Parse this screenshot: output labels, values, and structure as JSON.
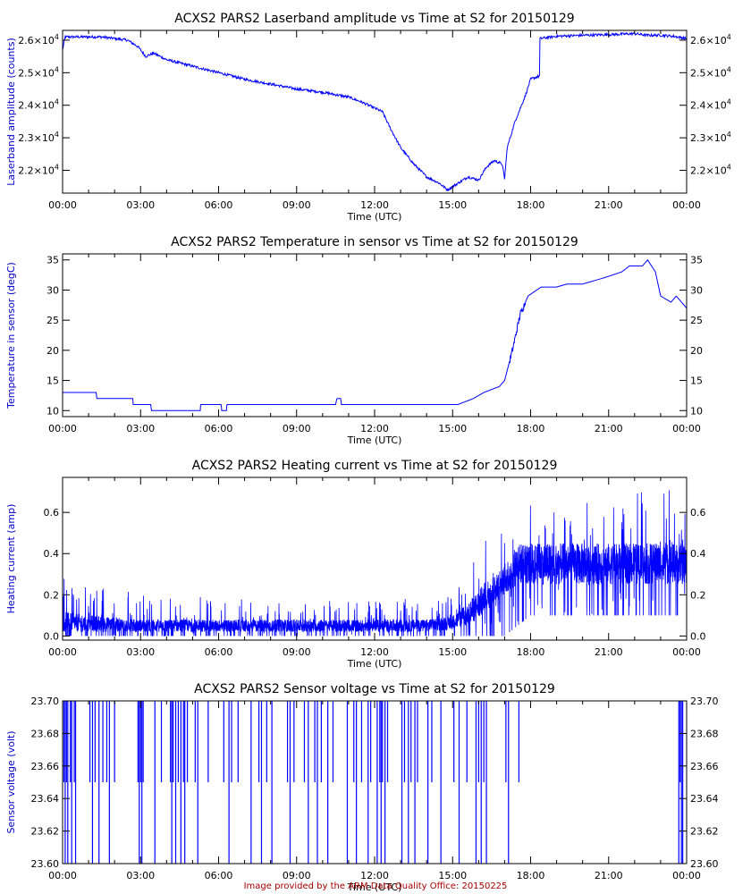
{
  "footer": "Image provided by the ARM Data Quality Office: 20150225",
  "colors": {
    "series": "#0000ff",
    "ylabel": "#0000cc",
    "axis": "#000000",
    "footer": "#aa0000"
  },
  "chart_data": [
    {
      "type": "line",
      "id": "laserband",
      "title": "ACXS2 PARS2 Laserband amplitude vs Time at S2 for 20150129",
      "xlabel": "Time (UTC)",
      "ylabel": "Laserband amplitude (counts)",
      "xlim": [
        0,
        24
      ],
      "ylim": [
        21300,
        26300
      ],
      "x_ticks": [
        0,
        3,
        6,
        9,
        12,
        15,
        18,
        21,
        24
      ],
      "x_tick_labels": [
        "00:00",
        "03:00",
        "06:00",
        "09:00",
        "12:00",
        "15:00",
        "18:00",
        "21:00",
        "00:00"
      ],
      "y_ticks": [
        22000,
        23000,
        24000,
        25000,
        26000
      ],
      "y_tick_labels": [
        {
          "base": "2.2×10",
          "exp": "4"
        },
        {
          "base": "2.3×10",
          "exp": "4"
        },
        {
          "base": "2.4×10",
          "exp": "4"
        },
        {
          "base": "2.5×10",
          "exp": "4"
        },
        {
          "base": "2.6×10",
          "exp": "4"
        }
      ],
      "noise": 40,
      "series": [
        {
          "name": "Laserband amplitude",
          "x": [
            0,
            0.1,
            0.5,
            1.5,
            2.5,
            2.9,
            3.2,
            3.5,
            4,
            5,
            6,
            7,
            8,
            9,
            10,
            11,
            11.5,
            12.3,
            12.6,
            13,
            13.5,
            14,
            14.5,
            14.8,
            15.2,
            15.6,
            16,
            16.3,
            16.6,
            16.9,
            17,
            17.1,
            17.4,
            17.8,
            18,
            18.35,
            18.36,
            19,
            20,
            21,
            22,
            22.5,
            23,
            23.5,
            24
          ],
          "y": [
            25700,
            26100,
            26100,
            26100,
            26000,
            25800,
            25500,
            25600,
            25400,
            25200,
            25000,
            24800,
            24650,
            24500,
            24400,
            24250,
            24100,
            23800,
            23300,
            22700,
            22200,
            21800,
            21600,
            21400,
            21600,
            21800,
            21700,
            22100,
            22300,
            22200,
            21750,
            22700,
            23500,
            24300,
            24800,
            24900,
            26050,
            26120,
            26150,
            26170,
            26200,
            26150,
            26150,
            26120,
            26050
          ]
        }
      ]
    },
    {
      "type": "line",
      "id": "temperature",
      "title": "ACXS2 PARS2 Temperature in sensor vs Time at S2 for 20150129",
      "xlabel": "Time (UTC)",
      "ylabel": "Temperature in sensor (degC)",
      "xlim": [
        0,
        24
      ],
      "ylim": [
        9,
        36
      ],
      "x_ticks": [
        0,
        3,
        6,
        9,
        12,
        15,
        18,
        21,
        24
      ],
      "x_tick_labels": [
        "00:00",
        "03:00",
        "06:00",
        "09:00",
        "12:00",
        "15:00",
        "18:00",
        "21:00",
        "00:00"
      ],
      "y_ticks": [
        10,
        15,
        20,
        25,
        30,
        35
      ],
      "y_tick_labels": [
        "10",
        "15",
        "20",
        "25",
        "30",
        "35"
      ],
      "noise": 0,
      "series": [
        {
          "name": "Temperature",
          "x": [
            0,
            1.3,
            1.31,
            2.7,
            2.71,
            3.4,
            3.41,
            5.3,
            5.31,
            6.1,
            6.12,
            6.3,
            6.32,
            8.5,
            8.52,
            10.5,
            10.55,
            10.7,
            10.72,
            15.1,
            15.2,
            15.5,
            15.8,
            16.2,
            16.5,
            16.8,
            17.0,
            17.3,
            17.6,
            17.9,
            18.4,
            19.0,
            19.4,
            20.0,
            20.8,
            21.5,
            21.8,
            22.3,
            22.5,
            22.8,
            23.0,
            23.4,
            23.6,
            23.8,
            24.0
          ],
          "y": [
            13,
            13,
            12,
            12,
            11,
            11,
            10,
            10,
            11,
            11,
            10,
            10,
            11,
            11,
            11,
            11,
            12,
            12,
            11,
            11,
            11,
            11.5,
            12,
            13,
            13.5,
            14,
            15,
            20,
            26,
            29,
            30.5,
            30.5,
            31,
            31,
            32,
            33,
            34,
            34,
            35,
            33,
            29,
            28,
            29,
            28,
            27
          ]
        }
      ]
    },
    {
      "type": "line",
      "id": "heating",
      "title": "ACXS2 PARS2 Heating current vs Time at S2 for 20150129",
      "xlabel": "Time (UTC)",
      "ylabel": "Heating current (amp)",
      "xlim": [
        0,
        24
      ],
      "ylim": [
        -0.02,
        0.77
      ],
      "x_ticks": [
        0,
        3,
        6,
        9,
        12,
        15,
        18,
        21,
        24
      ],
      "x_tick_labels": [
        "00:00",
        "03:00",
        "06:00",
        "09:00",
        "12:00",
        "15:00",
        "18:00",
        "21:00",
        "00:00"
      ],
      "y_ticks": [
        0.0,
        0.2,
        0.4,
        0.6
      ],
      "y_tick_labels": [
        "0.0",
        "0.2",
        "0.4",
        "0.6"
      ],
      "noise": 0,
      "series": [
        {
          "name": "Heating current",
          "x": [
            0,
            1,
            2,
            3,
            4,
            5,
            6,
            7,
            8,
            9,
            10,
            11,
            12,
            13,
            14,
            15,
            15.5,
            16,
            16.5,
            17,
            17.5,
            18,
            19,
            20,
            21,
            22,
            23,
            24
          ],
          "low": [
            0,
            0,
            0,
            0,
            0,
            0,
            0,
            0,
            0,
            0,
            0,
            0,
            0,
            0,
            0,
            0,
            0,
            0,
            0,
            0,
            0.05,
            0.1,
            0.1,
            0.1,
            0.1,
            0.1,
            0.1,
            0.1
          ],
          "high": [
            0.3,
            0.25,
            0.22,
            0.22,
            0.2,
            0.2,
            0.18,
            0.18,
            0.17,
            0.17,
            0.17,
            0.17,
            0.17,
            0.18,
            0.18,
            0.2,
            0.32,
            0.45,
            0.5,
            0.55,
            0.6,
            0.65,
            0.62,
            0.64,
            0.68,
            0.7,
            0.75,
            0.65
          ],
          "typ_low": [
            0.02,
            0.02,
            0.02,
            0.02,
            0.02,
            0.02,
            0.02,
            0.02,
            0.02,
            0.02,
            0.02,
            0.02,
            0.02,
            0.02,
            0.02,
            0.03,
            0.05,
            0.08,
            0.15,
            0.2,
            0.25,
            0.25,
            0.25,
            0.25,
            0.25,
            0.25,
            0.25,
            0.25
          ],
          "typ_high": [
            0.12,
            0.1,
            0.09,
            0.08,
            0.08,
            0.08,
            0.08,
            0.08,
            0.08,
            0.08,
            0.08,
            0.08,
            0.08,
            0.08,
            0.08,
            0.1,
            0.15,
            0.22,
            0.3,
            0.35,
            0.45,
            0.45,
            0.45,
            0.45,
            0.45,
            0.45,
            0.45,
            0.45
          ]
        }
      ]
    },
    {
      "type": "line",
      "id": "voltage",
      "title": "ACXS2 PARS2 Sensor voltage vs Time at S2 for 20150129",
      "xlabel": "Time (UTC)",
      "ylabel": "Sensor voltage (volt)",
      "xlim": [
        0,
        24
      ],
      "ylim": [
        23.6,
        23.7
      ],
      "x_ticks": [
        0,
        3,
        6,
        9,
        12,
        15,
        18,
        21,
        24
      ],
      "x_tick_labels": [
        "00:00",
        "03:00",
        "06:00",
        "09:00",
        "12:00",
        "15:00",
        "18:00",
        "21:00",
        "00:00"
      ],
      "y_ticks": [
        23.6,
        23.62,
        23.64,
        23.66,
        23.68,
        23.7
      ],
      "y_tick_labels": [
        "23.60",
        "23.62",
        "23.64",
        "23.66",
        "23.68",
        "23.70"
      ],
      "baseline": 23.7,
      "series": [
        {
          "name": "Sensor voltage dips",
          "dip_times": [
            0.05,
            0.1,
            0.15,
            0.2,
            0.3,
            0.35,
            0.45,
            0.5,
            1.05,
            1.15,
            1.25,
            1.4,
            1.55,
            1.7,
            1.8,
            2.0,
            2.9,
            2.95,
            3.0,
            3.05,
            3.1,
            3.55,
            3.8,
            4.15,
            4.2,
            4.25,
            4.35,
            4.45,
            4.55,
            4.65,
            4.7,
            4.8,
            5.1,
            5.2,
            5.6,
            6.2,
            6.4,
            6.5,
            6.75,
            7.25,
            7.55,
            7.65,
            7.85,
            8.05,
            8.65,
            8.75,
            8.9,
            9.3,
            9.45,
            9.7,
            9.8,
            9.95,
            10.2,
            10.4,
            10.95,
            11.2,
            11.3,
            11.5,
            11.75,
            11.85,
            12.1,
            12.2,
            12.25,
            12.3,
            12.4,
            12.5,
            13.05,
            13.15,
            13.3,
            13.4,
            13.55,
            13.65,
            14.05,
            14.2,
            14.55,
            15.05,
            15.25,
            15.55,
            15.9,
            16.0,
            16.1,
            16.2,
            16.3,
            17.05,
            17.15,
            17.55,
            23.7,
            23.75,
            23.8,
            23.85
          ],
          "dip_values": [
            23.65,
            23.6,
            23.65,
            23.6,
            23.65,
            23.6,
            23.65,
            23.6,
            23.65,
            23.6,
            23.65,
            23.6,
            23.65,
            23.65,
            23.6,
            23.65,
            23.65,
            23.6,
            23.65,
            23.6,
            23.65,
            23.6,
            23.65,
            23.65,
            23.6,
            23.65,
            23.6,
            23.65,
            23.6,
            23.65,
            23.6,
            23.65,
            23.65,
            23.6,
            23.65,
            23.65,
            23.6,
            23.65,
            23.65,
            23.6,
            23.65,
            23.6,
            23.65,
            23.6,
            23.65,
            23.6,
            23.65,
            23.65,
            23.6,
            23.65,
            23.6,
            23.65,
            23.6,
            23.65,
            23.6,
            23.65,
            23.6,
            23.65,
            23.6,
            23.65,
            23.6,
            23.65,
            23.6,
            23.65,
            23.6,
            23.65,
            23.6,
            23.65,
            23.6,
            23.65,
            23.6,
            23.65,
            23.6,
            23.65,
            23.6,
            23.65,
            23.6,
            23.65,
            23.6,
            23.65,
            23.6,
            23.65,
            23.6,
            23.65,
            23.6,
            23.65,
            23.6,
            23.65,
            23.6,
            23.6
          ]
        }
      ]
    }
  ]
}
